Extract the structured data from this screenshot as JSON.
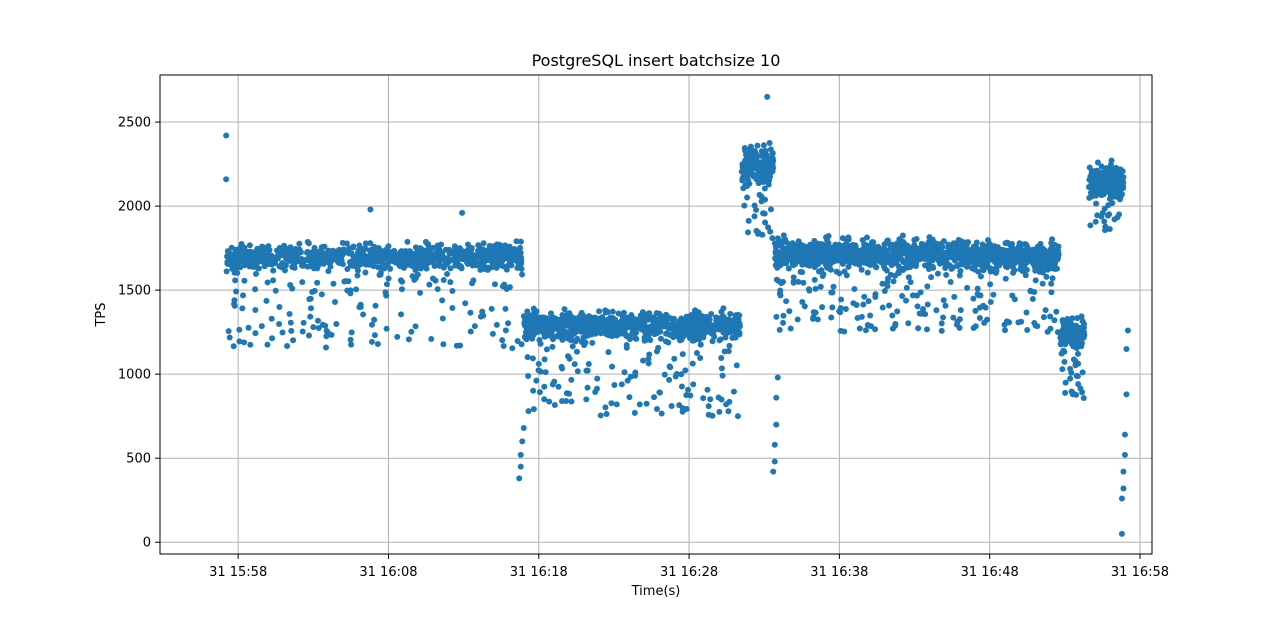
{
  "chart_data": {
    "type": "scatter",
    "title": "PostgreSQL insert batchsize 10",
    "xlabel": "Time(s)",
    "ylabel": "TPS",
    "x_unit": "minutes since 31 15:58",
    "xlim": [
      -5.2,
      60.8
    ],
    "ylim": [
      -70,
      2780
    ],
    "x_ticks": [
      {
        "value": 0,
        "label": "31 15:58"
      },
      {
        "value": 10,
        "label": "31 16:08"
      },
      {
        "value": 20,
        "label": "31 16:18"
      },
      {
        "value": 30,
        "label": "31 16:28"
      },
      {
        "value": 40,
        "label": "31 16:38"
      },
      {
        "value": 50,
        "label": "31 16:48"
      },
      {
        "value": 60,
        "label": "31 16:58"
      }
    ],
    "y_ticks": [
      {
        "value": 0,
        "label": "0"
      },
      {
        "value": 500,
        "label": "500"
      },
      {
        "value": 1000,
        "label": "1000"
      },
      {
        "value": 1500,
        "label": "1500"
      },
      {
        "value": 2000,
        "label": "2000"
      },
      {
        "value": 2500,
        "label": "2500"
      }
    ],
    "grid": true,
    "marker_color": "#1f77b4",
    "segments": [
      {
        "x_start": -0.8,
        "x_end": 18.9,
        "center": 1700,
        "spread": 80,
        "low_tail": 1150,
        "samples": 1000
      },
      {
        "x_start": 19.0,
        "x_end": 33.4,
        "center": 1290,
        "spread": 90,
        "low_tail": 750,
        "samples": 900
      },
      {
        "x_start": 33.5,
        "x_end": 35.6,
        "center": 2250,
        "spread": 120,
        "low_tail": 1800,
        "samples": 180
      },
      {
        "x_start": 35.7,
        "x_end": 48.7,
        "center": 1720,
        "spread": 95,
        "low_tail": 1250,
        "samples": 900
      },
      {
        "x_start": 48.8,
        "x_end": 54.6,
        "center": 1700,
        "spread": 90,
        "low_tail": 1250,
        "samples": 420
      },
      {
        "x_start": 54.7,
        "x_end": 56.3,
        "center": 1250,
        "spread": 90,
        "low_tail": 850,
        "samples": 160
      },
      {
        "x_start": 56.6,
        "x_end": 58.9,
        "center": 2150,
        "spread": 110,
        "low_tail": 1850,
        "samples": 220
      }
    ],
    "outliers": [
      {
        "x": -0.8,
        "y": 2420
      },
      {
        "x": -0.8,
        "y": 2160
      },
      {
        "x": 8.8,
        "y": 1980
      },
      {
        "x": 14.9,
        "y": 1960
      },
      {
        "x": 18.7,
        "y": 380
      },
      {
        "x": 18.8,
        "y": 450
      },
      {
        "x": 18.8,
        "y": 520
      },
      {
        "x": 18.9,
        "y": 600
      },
      {
        "x": 19.0,
        "y": 680
      },
      {
        "x": 35.2,
        "y": 2650
      },
      {
        "x": 35.6,
        "y": 420
      },
      {
        "x": 35.7,
        "y": 480
      },
      {
        "x": 35.7,
        "y": 580
      },
      {
        "x": 35.8,
        "y": 700
      },
      {
        "x": 35.8,
        "y": 860
      },
      {
        "x": 35.9,
        "y": 980
      },
      {
        "x": 58.8,
        "y": 50
      },
      {
        "x": 58.8,
        "y": 260
      },
      {
        "x": 58.9,
        "y": 320
      },
      {
        "x": 58.9,
        "y": 420
      },
      {
        "x": 59.0,
        "y": 520
      },
      {
        "x": 59.0,
        "y": 640
      },
      {
        "x": 59.1,
        "y": 880
      },
      {
        "x": 59.1,
        "y": 1150
      },
      {
        "x": 59.2,
        "y": 1260
      }
    ]
  }
}
